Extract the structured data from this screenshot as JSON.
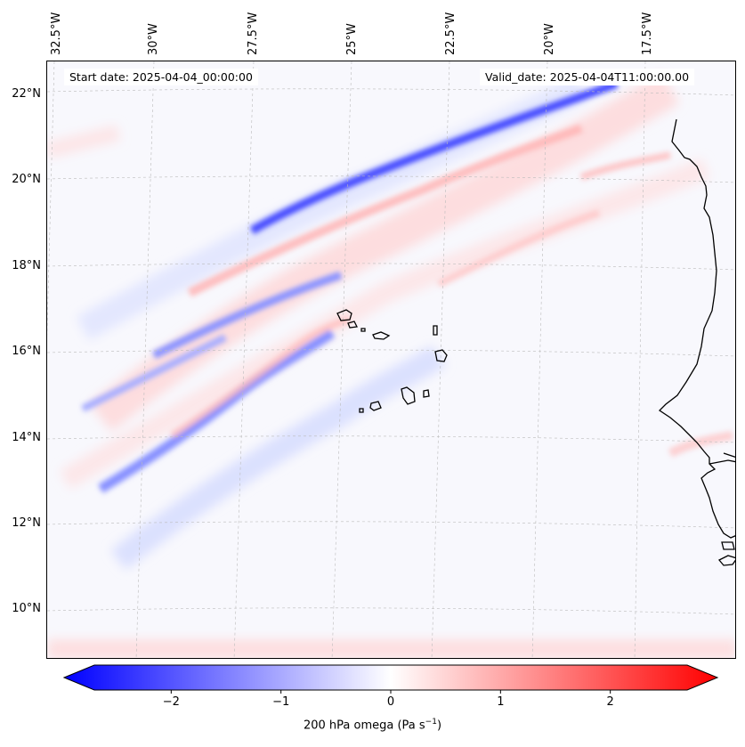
{
  "map": {
    "start_date": "Start date: 2025-04-04_00:00:00",
    "valid_date": "Valid_date: 2025-04-04T11:00:00.00",
    "longitude_labels": [
      "32.5°W",
      "30°W",
      "27.5°W",
      "25°W",
      "22.5°W",
      "20°W",
      "17.5°W"
    ],
    "latitude_labels": [
      "22°N",
      "20°N",
      "18°N",
      "16°N",
      "14°N",
      "12°N",
      "10°N"
    ],
    "colors": {
      "negative": "#0000ff",
      "neutral": "#ffffff",
      "positive": "#ff0000",
      "coast": "#000000"
    }
  },
  "colorbar": {
    "label": "200 hPa omega (Pa s",
    "label_sup": "−1",
    "label_close": ")",
    "ticks": [
      "−2",
      "−1",
      "0",
      "1",
      "2"
    ],
    "min": -2.7,
    "max": 2.7
  }
}
